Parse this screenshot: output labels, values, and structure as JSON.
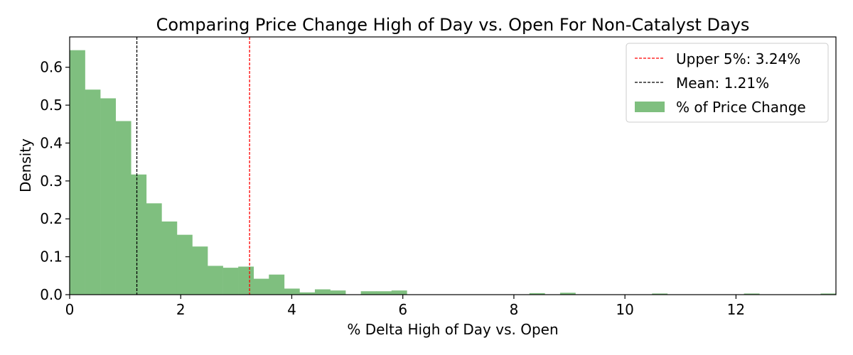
{
  "chart_data": {
    "type": "bar",
    "title": "Comparing Price Change High of Day vs. Open For Non-Catalyst Days",
    "xlabel": "% Delta High of Day vs. Open",
    "ylabel": "Density",
    "xlim": [
      0,
      13.8
    ],
    "ylim": [
      0,
      0.68
    ],
    "x_ticks": [
      0,
      2,
      4,
      6,
      8,
      10,
      12
    ],
    "y_ticks": [
      0.0,
      0.1,
      0.2,
      0.3,
      0.4,
      0.5,
      0.6
    ],
    "x_tick_labels": [
      "0",
      "2",
      "4",
      "6",
      "8",
      "10",
      "12"
    ],
    "y_tick_labels": [
      "0.0",
      "0.1",
      "0.2",
      "0.3",
      "0.4",
      "0.5",
      "0.6"
    ],
    "grid": false,
    "legend_position": "top-right",
    "series": [
      {
        "name": "% of Price Change",
        "kind": "histogram",
        "color": "#7fbf7f",
        "bin_edges": [
          0.0,
          0.276,
          0.552,
          0.828,
          1.104,
          1.38,
          1.656,
          1.932,
          2.208,
          2.484,
          2.76,
          3.036,
          3.312,
          3.588,
          3.864,
          4.14,
          4.416,
          4.692,
          4.968,
          5.244,
          5.52,
          5.796,
          6.072,
          6.348,
          6.624,
          6.9,
          7.176,
          7.452,
          7.728,
          8.004,
          8.28,
          8.556,
          8.832,
          9.108,
          9.384,
          9.66,
          9.936,
          10.212,
          10.488,
          10.764,
          11.04,
          11.316,
          11.592,
          11.868,
          12.144,
          12.42,
          12.696,
          12.972,
          13.248,
          13.524,
          13.8
        ],
        "densities": [
          0.645,
          0.541,
          0.518,
          0.458,
          0.317,
          0.241,
          0.193,
          0.158,
          0.127,
          0.076,
          0.071,
          0.074,
          0.042,
          0.053,
          0.016,
          0.006,
          0.014,
          0.011,
          0.0,
          0.009,
          0.009,
          0.011,
          0.0,
          0.0,
          0.0,
          0.0,
          0.0,
          0.0,
          0.0,
          0.0,
          0.004,
          0.0,
          0.005,
          0.0,
          0.0,
          0.0,
          0.0,
          0.0,
          0.003,
          0.0,
          0.0,
          0.0,
          0.0,
          0.0,
          0.003,
          0.0,
          0.0,
          0.0,
          0.0,
          0.003
        ]
      }
    ],
    "reference_lines": [
      {
        "name": "Upper 5%: 3.24%",
        "x": 3.24,
        "color": "#ff0000",
        "style": "dashed"
      },
      {
        "name": "Mean: 1.21%",
        "x": 1.21,
        "color": "#000000",
        "style": "dashed"
      }
    ]
  }
}
